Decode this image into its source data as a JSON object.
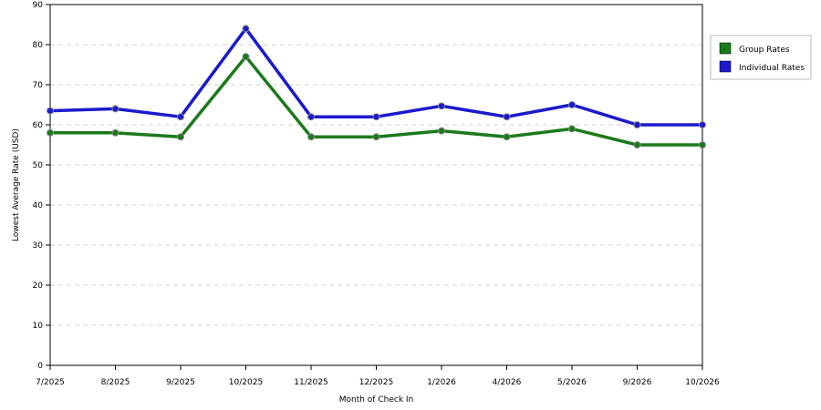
{
  "chart_data": {
    "type": "line",
    "title": "",
    "xlabel": "Month of Check In",
    "ylabel": "Lowest Average Rate (USD)",
    "categories": [
      "7/2025",
      "8/2025",
      "9/2025",
      "10/2025",
      "11/2025",
      "12/2025",
      "1/2026",
      "4/2026",
      "5/2026",
      "9/2026",
      "10/2026"
    ],
    "ylim": [
      0,
      90
    ],
    "yticks": [
      "0",
      "10",
      "20",
      "30",
      "40",
      "50",
      "60",
      "70",
      "80",
      "90"
    ],
    "grid": true,
    "legend_position": "right",
    "series": [
      {
        "name": "Group Rates",
        "color": "#1a7a1a",
        "values": [
          58,
          58,
          57,
          77,
          57,
          57,
          58.5,
          57,
          59,
          55,
          55
        ]
      },
      {
        "name": "Individual Rates",
        "color": "#1a1acc",
        "values": [
          63.5,
          64,
          62,
          84,
          62,
          62,
          64.7,
          62,
          65,
          60,
          60
        ]
      }
    ]
  }
}
